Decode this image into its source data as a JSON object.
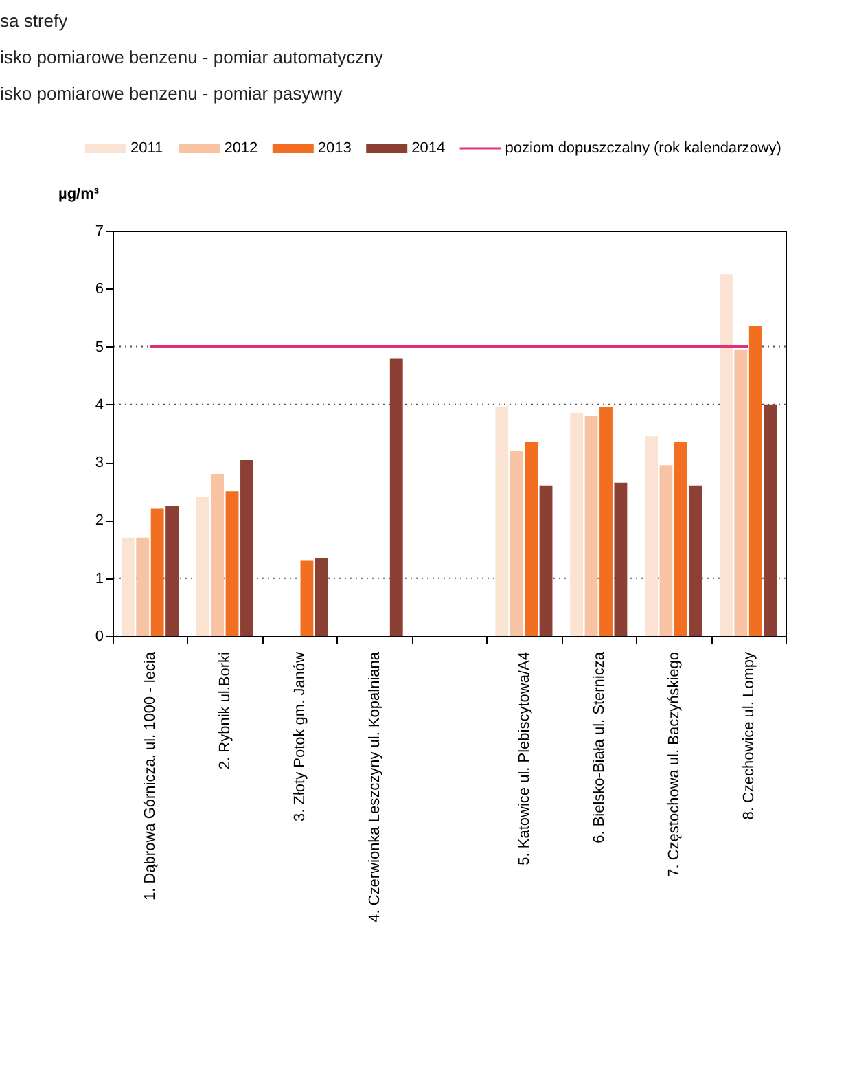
{
  "chart_data": {
    "type": "bar",
    "annotations": [
      "sa strefy",
      "isko pomiarowe benzenu - pomiar automatyczny",
      "isko pomiarowe benzenu - pomiar pasywny"
    ],
    "ylabel": "µg/m³",
    "categories": [
      "1. Dąbrowa Górnicza. ul. 1000 - lecia",
      "2. Rybnik ul.Borki",
      "3. Złoty Potok gm. Janów",
      "4. Czerwionka  Leszczyny ul. Kopalniana",
      null,
      "5. Katowice ul. Plebiscytowa/A4",
      "6. Bielsko-Biała ul. Sternicza",
      "7. Częstochowa ul. Baczyńskiego",
      "8. Czechowice ul. Lompy"
    ],
    "series": [
      {
        "name": "2011",
        "color": "#fbe3d3",
        "values": [
          1.7,
          2.4,
          null,
          null,
          null,
          3.95,
          3.85,
          3.45,
          6.25
        ]
      },
      {
        "name": "2012",
        "color": "#f7c3a3",
        "values": [
          1.7,
          2.8,
          null,
          null,
          null,
          3.2,
          3.8,
          2.95,
          4.95
        ]
      },
      {
        "name": "2013",
        "color": "#f26f21",
        "values": [
          2.2,
          2.5,
          1.3,
          null,
          null,
          3.35,
          3.95,
          3.35,
          5.35
        ]
      },
      {
        "name": "2014",
        "color": "#8b4033",
        "values": [
          2.25,
          3.05,
          1.35,
          4.8,
          null,
          2.6,
          2.65,
          2.6,
          4.0
        ]
      },
      {
        "name": "poziom dopuszczalny (rok kalendarzowy)",
        "type": "line",
        "color": "#e0307a",
        "values": [
          5,
          5,
          5,
          5,
          5,
          5,
          5,
          5,
          5
        ]
      }
    ],
    "ylim": [
      0,
      7
    ],
    "yticks": [
      0,
      1,
      2,
      3,
      4,
      5,
      6,
      7
    ],
    "ref_lines": [
      {
        "axis": "y",
        "value": 1,
        "color": "#555555",
        "line_style": "dotted"
      },
      {
        "axis": "y",
        "value": 4,
        "color": "#555555",
        "line_style": "dotted"
      },
      {
        "axis": "y",
        "value": 5,
        "color": "#555555",
        "line_style": "dotted"
      }
    ],
    "grid": false,
    "legend": "top"
  }
}
